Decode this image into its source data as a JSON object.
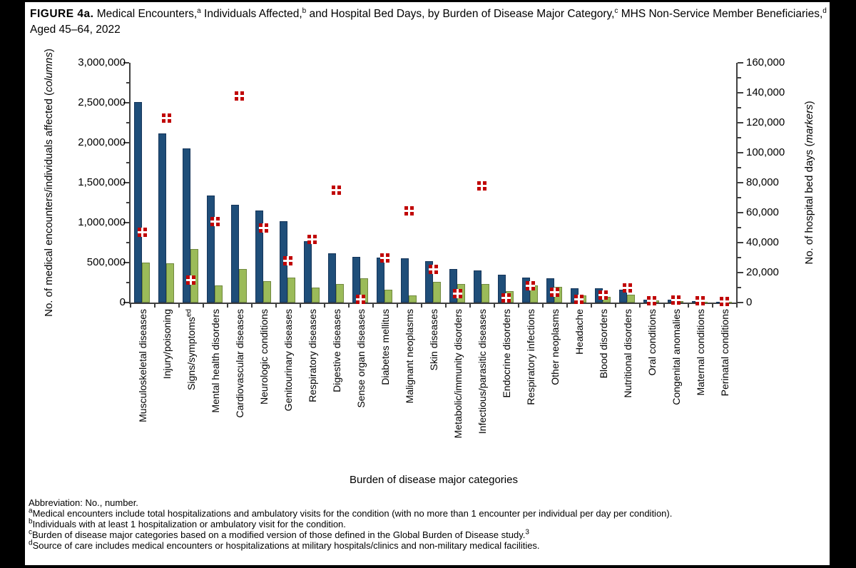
{
  "page": {
    "frame_color": "#000000",
    "background": "#ffffff"
  },
  "figure_title_segments": [
    {
      "b": "FIGURE 4a."
    },
    {
      "t": " Medical Encounters,"
    },
    {
      "s": "a"
    },
    {
      "t": " Individuals Affected,"
    },
    {
      "s": "b"
    },
    {
      "t": " and Hospital Bed Days, by Burden of Disease Major Category,"
    },
    {
      "s": "c"
    },
    {
      "t": " MHS Non-Service Member Beneficiaries,"
    },
    {
      "s": "d"
    },
    {
      "t": " Aged 45–64, 2022"
    }
  ],
  "chart_data": {
    "type": "bar",
    "subtype": "grouped-columns-with-scatter-markers",
    "x_title": "Burden of disease major categories",
    "grid": "off",
    "legend": "none",
    "y_left": {
      "title_segments": [
        {
          "t": "No. of medical encounters/individuals affected ("
        },
        {
          "i": "columns"
        },
        {
          "t": ")"
        }
      ],
      "min": 0,
      "max": 3000000,
      "major_step": 500000,
      "minor_step": 250000,
      "tick_labels": [
        "0",
        "500,000",
        "1,000,000",
        "1,500,000",
        "2,000,000",
        "2,500,000",
        "3,000,000"
      ]
    },
    "y_right": {
      "title_segments": [
        {
          "t": "No. of hospital bed days ("
        },
        {
          "i": "markers"
        },
        {
          "t": ")"
        }
      ],
      "min": 0,
      "max": 160000,
      "major_step": 20000,
      "minor_step": 10000,
      "tick_labels": [
        "0",
        "20,000",
        "40,000",
        "60,000",
        "80,000",
        "100,000",
        "120,000",
        "140,000",
        "160,000"
      ]
    },
    "categories": [
      {
        "label": "Musculoskeletal diseases"
      },
      {
        "label": "Injury/poisoning"
      },
      {
        "label": "Signs/symptoms",
        "sup": "ed"
      },
      {
        "label": "Mental health disorders"
      },
      {
        "label": "Cardiovascular diseases"
      },
      {
        "label": "Neurologic conditions"
      },
      {
        "label": "Genitourinary diseases"
      },
      {
        "label": "Respiratory diseases"
      },
      {
        "label": "Digestive diseases"
      },
      {
        "label": "Sense organ diseases"
      },
      {
        "label": "Diabetes mellitus"
      },
      {
        "label": "Malignant neoplasms"
      },
      {
        "label": "Skin diseases"
      },
      {
        "label": "Metabolic/immunity disorders"
      },
      {
        "label": "Infectious/parasitic diseases"
      },
      {
        "label": "Endocrine disorders"
      },
      {
        "label": "Respiratory infections"
      },
      {
        "label": "Other neoplasms"
      },
      {
        "label": "Headache"
      },
      {
        "label": "Blood disorders"
      },
      {
        "label": "Nutritional disorders"
      },
      {
        "label": "Oral conditions"
      },
      {
        "label": "Congenital anomalies"
      },
      {
        "label": "Maternal conditions"
      },
      {
        "label": "Perinatal conditions"
      }
    ],
    "series": [
      {
        "name": "Medical encounters",
        "render": "column",
        "axis": "left",
        "color": "#1F4E79",
        "border": "#15355A",
        "values": [
          2510000,
          2120000,
          1930000,
          1340000,
          1220000,
          1150000,
          1020000,
          770000,
          620000,
          575000,
          560000,
          555000,
          520000,
          420000,
          400000,
          345000,
          310000,
          300000,
          180000,
          180000,
          160000,
          40000,
          40000,
          15000,
          10000
        ]
      },
      {
        "name": "Individuals affected",
        "render": "column",
        "axis": "left",
        "color": "#9BBB59",
        "border": "#71893F",
        "values": [
          500000,
          490000,
          670000,
          210000,
          420000,
          265000,
          310000,
          185000,
          230000,
          300000,
          160000,
          85000,
          260000,
          235000,
          230000,
          145000,
          210000,
          200000,
          85000,
          70000,
          100000,
          30000,
          20000,
          10000,
          5000
        ]
      },
      {
        "name": "Hospital bed days",
        "render": "marker",
        "axis": "right",
        "color": "#C00000",
        "values": [
          47000,
          123000,
          15000,
          54000,
          138000,
          50000,
          28000,
          42000,
          75000,
          2000,
          30000,
          61000,
          22000,
          6000,
          78000,
          3000,
          11000,
          7000,
          2000,
          5000,
          10000,
          1000,
          1500,
          1200,
          500
        ]
      }
    ]
  },
  "footnotes": [
    [
      {
        "t": "Abbreviation: No., number."
      }
    ],
    [
      {
        "s": "a"
      },
      {
        "t": "Medical encounters include total hospitalizations and ambulatory visits for the condition (with no more than 1 encounter per individual per day per condition)."
      }
    ],
    [
      {
        "s": "b"
      },
      {
        "t": "Individuals with at least 1 hospitalization or ambulatory visit for the condition."
      }
    ],
    [
      {
        "s": "c"
      },
      {
        "t": "Burden of disease major categories based on a modified version of those defined in the Global Burden of Disease study."
      },
      {
        "s": "3"
      }
    ],
    [
      {
        "s": "d"
      },
      {
        "t": "Source of care includes medical encounters or hospitalizations at military hospitals/clinics and non-military medical facilities."
      }
    ]
  ]
}
